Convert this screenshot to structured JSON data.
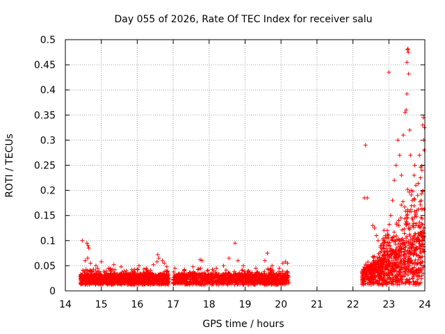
{
  "chart_data": {
    "type": "scatter",
    "title": "Day 055 of 2026, Rate Of TEC Index for receiver salu",
    "xlabel": "GPS time / hours",
    "ylabel": "ROTI / TECUs",
    "xlim": [
      14,
      24
    ],
    "ylim": [
      0,
      0.5
    ],
    "x_ticks": [
      14,
      15,
      16,
      17,
      18,
      19,
      20,
      21,
      22,
      23,
      24
    ],
    "y_ticks": [
      0,
      0.05,
      0.1,
      0.15,
      0.2,
      0.25,
      0.3,
      0.35,
      0.4,
      0.45,
      0.5
    ],
    "y_tick_labels": [
      "0",
      "0.05",
      "0.1",
      "0.15",
      "0.2",
      "0.25",
      "0.3",
      "0.35",
      "0.4",
      "0.45",
      "0.5"
    ],
    "grid": true,
    "marker": "+",
    "marker_color": "#ff0000",
    "series": [
      {
        "name": "ROTI",
        "points": [
          [
            14.47,
            0.1
          ],
          [
            14.6,
            0.095
          ],
          [
            14.63,
            0.09
          ],
          [
            14.65,
            0.085
          ],
          [
            14.62,
            0.065
          ],
          [
            14.55,
            0.06
          ],
          [
            14.7,
            0.055
          ],
          [
            14.9,
            0.045
          ],
          [
            15.0,
            0.058
          ],
          [
            14.85,
            0.05
          ],
          [
            15.2,
            0.045
          ],
          [
            15.35,
            0.052
          ],
          [
            15.55,
            0.048
          ],
          [
            15.7,
            0.04
          ],
          [
            15.85,
            0.042
          ],
          [
            16.05,
            0.05
          ],
          [
            16.25,
            0.045
          ],
          [
            16.45,
            0.052
          ],
          [
            16.55,
            0.058
          ],
          [
            16.6,
            0.065
          ],
          [
            16.57,
            0.072
          ],
          [
            16.7,
            0.06
          ],
          [
            16.75,
            0.055
          ],
          [
            16.82,
            0.048
          ],
          [
            17.05,
            0.045
          ],
          [
            17.3,
            0.04
          ],
          [
            17.55,
            0.048
          ],
          [
            17.75,
            0.062
          ],
          [
            17.8,
            0.06
          ],
          [
            17.95,
            0.04
          ],
          [
            18.2,
            0.045
          ],
          [
            18.4,
            0.05
          ],
          [
            18.55,
            0.065
          ],
          [
            18.72,
            0.095
          ],
          [
            18.8,
            0.06
          ],
          [
            18.95,
            0.05
          ],
          [
            19.1,
            0.04
          ],
          [
            19.3,
            0.045
          ],
          [
            19.55,
            0.06
          ],
          [
            19.62,
            0.075
          ],
          [
            19.75,
            0.05
          ],
          [
            19.95,
            0.045
          ],
          [
            20.05,
            0.055
          ],
          [
            20.12,
            0.058
          ],
          [
            20.18,
            0.055
          ],
          [
            22.32,
            0.185
          ],
          [
            22.35,
            0.29
          ],
          [
            22.4,
            0.185
          ],
          [
            22.55,
            0.13
          ],
          [
            22.6,
            0.125
          ],
          [
            22.65,
            0.11
          ],
          [
            22.7,
            0.1
          ],
          [
            22.8,
            0.09
          ],
          [
            22.85,
            0.085
          ],
          [
            22.9,
            0.11
          ],
          [
            22.95,
            0.105
          ],
          [
            23.0,
            0.435
          ],
          [
            23.05,
            0.15
          ],
          [
            23.1,
            0.18
          ],
          [
            23.15,
            0.22
          ],
          [
            23.2,
            0.25
          ],
          [
            23.25,
            0.3
          ],
          [
            23.3,
            0.27
          ],
          [
            23.35,
            0.23
          ],
          [
            23.4,
            0.31
          ],
          [
            23.45,
            0.355
          ],
          [
            23.48,
            0.36
          ],
          [
            23.5,
            0.392
          ],
          [
            23.52,
            0.48
          ],
          [
            23.53,
            0.482
          ],
          [
            23.54,
            0.475
          ],
          [
            23.5,
            0.455
          ],
          [
            23.55,
            0.432
          ],
          [
            23.58,
            0.32
          ],
          [
            23.6,
            0.27
          ],
          [
            23.62,
            0.2
          ],
          [
            23.65,
            0.18
          ],
          [
            23.7,
            0.23
          ],
          [
            23.72,
            0.25
          ],
          [
            23.75,
            0.21
          ],
          [
            23.78,
            0.16
          ],
          [
            23.8,
            0.19
          ],
          [
            23.82,
            0.13
          ],
          [
            23.85,
            0.27
          ],
          [
            23.88,
            0.225
          ],
          [
            23.9,
            0.18
          ],
          [
            23.92,
            0.24
          ],
          [
            23.94,
            0.33
          ],
          [
            23.96,
            0.345
          ],
          [
            23.97,
            0.3
          ],
          [
            23.98,
            0.28
          ],
          [
            23.99,
            0.325
          ]
        ]
      }
    ]
  }
}
